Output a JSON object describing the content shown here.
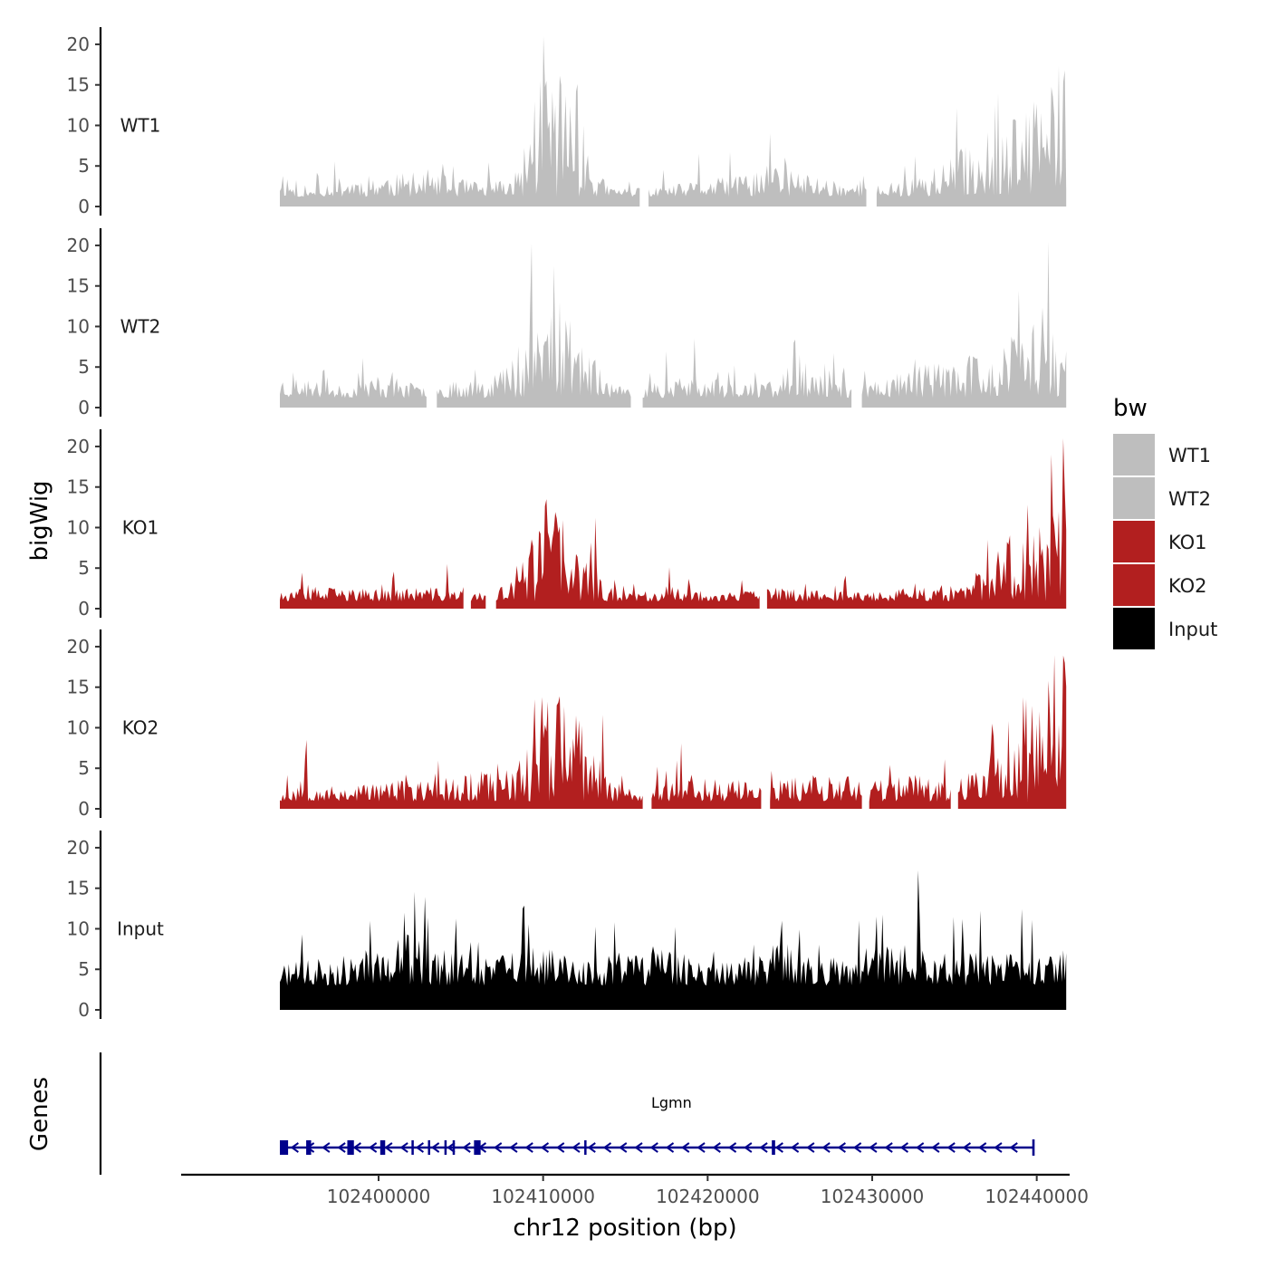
{
  "chart_data": {
    "type": "area",
    "title": "",
    "ylabel": "bigWig",
    "xlabel": "chr12 position (bp)",
    "gene_panel_label": "Genes",
    "xlim": [
      102388000,
      102442000
    ],
    "data_range": [
      102394000,
      102441800
    ],
    "ylim": [
      0,
      21
    ],
    "y_ticks": [
      "20",
      "15",
      "10",
      "5",
      "0"
    ],
    "x_ticks": [
      {
        "value": 102400000,
        "label": "102400000"
      },
      {
        "value": 102410000,
        "label": "102410000"
      },
      {
        "value": 102420000,
        "label": "102420000"
      },
      {
        "value": 102430000,
        "label": "102430000"
      },
      {
        "value": 102440000,
        "label": "102440000"
      }
    ],
    "colors": {
      "WT": "#bebebe",
      "KO": "#b21f1f",
      "Input": "#000000",
      "gene": "#00008b",
      "axis": "#000000"
    },
    "legend": {
      "title": "bw",
      "position": "right",
      "entries": [
        {
          "label": "WT1",
          "color": "#bebebe"
        },
        {
          "label": "WT2",
          "color": "#bebebe"
        },
        {
          "label": "KO1",
          "color": "#b21f1f"
        },
        {
          "label": "KO2",
          "color": "#b21f1f"
        },
        {
          "label": "Input",
          "color": "#000000"
        }
      ]
    },
    "series": [
      {
        "name": "WT1",
        "color": "#bebebe",
        "baseline": 1.2,
        "seed": 11,
        "gaps": [
          [
            102415900,
            102416400
          ],
          [
            102429700,
            102430200
          ]
        ],
        "profile": [
          [
            102394000,
            4.0
          ],
          [
            102395200,
            1.2
          ],
          [
            102397000,
            2.5
          ],
          [
            102400000,
            3.0
          ],
          [
            102404000,
            2.8
          ],
          [
            102406500,
            2.2
          ],
          [
            102408500,
            3.0
          ],
          [
            102409300,
            8.5
          ],
          [
            102410000,
            12.0
          ],
          [
            102410500,
            11.5
          ],
          [
            102411200,
            9.0
          ],
          [
            102412000,
            9.5
          ],
          [
            102412800,
            4.0
          ],
          [
            102414000,
            2.0
          ],
          [
            102416500,
            1.8
          ],
          [
            102420000,
            2.5
          ],
          [
            102422000,
            2.8
          ],
          [
            102424000,
            4.0
          ],
          [
            102426000,
            3.0
          ],
          [
            102428000,
            2.5
          ],
          [
            102430000,
            2.0
          ],
          [
            102432000,
            2.5
          ],
          [
            102434000,
            3.5
          ],
          [
            102436000,
            5.5
          ],
          [
            102438000,
            6.5
          ],
          [
            102440000,
            8.5
          ],
          [
            102441500,
            11.0
          ],
          [
            102441800,
            13.0
          ]
        ],
        "peaks": [
          [
            102410200,
            15.5
          ],
          [
            102411100,
            15.0
          ],
          [
            102423800,
            9.0
          ],
          [
            102441700,
            16.8
          ],
          [
            102437500,
            12.5
          ],
          [
            102440300,
            11.5
          ],
          [
            102419500,
            6.5
          ],
          [
            102404500,
            5.0
          ]
        ]
      },
      {
        "name": "WT2",
        "color": "#bebebe",
        "baseline": 1.2,
        "seed": 23,
        "gaps": [
          [
            102403000,
            102403500
          ],
          [
            102415400,
            102416000
          ],
          [
            102428800,
            102429300
          ]
        ],
        "profile": [
          [
            102394000,
            3.0
          ],
          [
            102398000,
            2.0
          ],
          [
            102400000,
            3.0
          ],
          [
            102403000,
            2.0
          ],
          [
            102406000,
            2.8
          ],
          [
            102408000,
            4.0
          ],
          [
            102409500,
            8.0
          ],
          [
            102410500,
            9.5
          ],
          [
            102411500,
            8.0
          ],
          [
            102412500,
            6.0
          ],
          [
            102413500,
            3.0
          ],
          [
            102415000,
            1.8
          ],
          [
            102417000,
            2.5
          ],
          [
            102419000,
            2.8
          ],
          [
            102421000,
            2.5
          ],
          [
            102423000,
            2.2
          ],
          [
            102425000,
            3.5
          ],
          [
            102427000,
            2.8
          ],
          [
            102429000,
            2.0
          ],
          [
            102431000,
            3.0
          ],
          [
            102433000,
            3.8
          ],
          [
            102435000,
            4.2
          ],
          [
            102437000,
            4.5
          ],
          [
            102439000,
            6.5
          ],
          [
            102440500,
            9.0
          ],
          [
            102441000,
            7.0
          ],
          [
            102441800,
            5.0
          ]
        ],
        "peaks": [
          [
            102409200,
            12.3
          ],
          [
            102411000,
            13.0
          ],
          [
            102419200,
            8.5
          ],
          [
            102440700,
            20.5
          ],
          [
            102438600,
            8.5
          ],
          [
            102432600,
            6.0
          ],
          [
            102425600,
            6.5
          ]
        ]
      },
      {
        "name": "KO1",
        "color": "#b21f1f",
        "baseline": 0.9,
        "seed": 37,
        "gaps": [
          [
            102405200,
            102405600
          ],
          [
            102406600,
            102407100
          ],
          [
            102423200,
            102423600
          ]
        ],
        "profile": [
          [
            102394000,
            1.5
          ],
          [
            102396000,
            2.0
          ],
          [
            102400000,
            1.8
          ],
          [
            102403000,
            2.0
          ],
          [
            102406000,
            1.5
          ],
          [
            102408000,
            2.2
          ],
          [
            102409000,
            5.5
          ],
          [
            102410000,
            8.0
          ],
          [
            102411000,
            8.5
          ],
          [
            102411800,
            4.0
          ],
          [
            102412800,
            6.5
          ],
          [
            102413500,
            2.5
          ],
          [
            102415000,
            1.5
          ],
          [
            102418000,
            2.0
          ],
          [
            102421000,
            1.5
          ],
          [
            102424000,
            2.0
          ],
          [
            102427000,
            1.8
          ],
          [
            102430000,
            1.6
          ],
          [
            102433000,
            2.0
          ],
          [
            102436000,
            2.2
          ],
          [
            102437500,
            6.5
          ],
          [
            102439000,
            5.5
          ],
          [
            102440500,
            9.0
          ],
          [
            102441300,
            17.0
          ],
          [
            102441800,
            18.5
          ]
        ],
        "peaks": [
          [
            102410200,
            13.5
          ],
          [
            102413200,
            11.2
          ],
          [
            102440900,
            19.0
          ],
          [
            102437000,
            8.5
          ],
          [
            102439800,
            9.0
          ],
          [
            102404200,
            5.5
          ]
        ]
      },
      {
        "name": "KO2",
        "color": "#b21f1f",
        "baseline": 0.9,
        "seed": 53,
        "gaps": [
          [
            102416100,
            102416500
          ],
          [
            102423300,
            102423700
          ],
          [
            102429400,
            102429800
          ],
          [
            102434800,
            102435200
          ]
        ],
        "profile": [
          [
            102394000,
            1.5
          ],
          [
            102395500,
            3.0
          ],
          [
            102397000,
            2.0
          ],
          [
            102400000,
            2.5
          ],
          [
            102403000,
            2.5
          ],
          [
            102405000,
            3.0
          ],
          [
            102407000,
            3.2
          ],
          [
            102408500,
            3.5
          ],
          [
            102409200,
            9.0
          ],
          [
            102410300,
            10.5
          ],
          [
            102411000,
            10.0
          ],
          [
            102412000,
            7.5
          ],
          [
            102413000,
            5.0
          ],
          [
            102414500,
            2.5
          ],
          [
            102416000,
            1.5
          ],
          [
            102418000,
            3.0
          ],
          [
            102420000,
            2.8
          ],
          [
            102422000,
            2.5
          ],
          [
            102424000,
            2.5
          ],
          [
            102426000,
            3.2
          ],
          [
            102428000,
            2.8
          ],
          [
            102430000,
            2.6
          ],
          [
            102432000,
            3.0
          ],
          [
            102434000,
            3.0
          ],
          [
            102436000,
            3.0
          ],
          [
            102437500,
            6.5
          ],
          [
            102439000,
            8.5
          ],
          [
            102440500,
            10.0
          ],
          [
            102441800,
            15.0
          ]
        ],
        "peaks": [
          [
            102409500,
            13.5
          ],
          [
            102410300,
            13.2
          ],
          [
            102441700,
            18.0
          ],
          [
            102440200,
            12.0
          ],
          [
            102395600,
            8.5
          ],
          [
            102437300,
            10.5
          ]
        ]
      },
      {
        "name": "Input",
        "color": "#000000",
        "baseline": 3.0,
        "seed": 71,
        "gaps": [],
        "profile": [
          [
            102394000,
            4.5
          ],
          [
            102396000,
            5.0
          ],
          [
            102398000,
            5.5
          ],
          [
            102400000,
            6.0
          ],
          [
            102402000,
            7.0
          ],
          [
            102403500,
            6.0
          ],
          [
            102405000,
            5.5
          ],
          [
            102407000,
            5.5
          ],
          [
            102409000,
            6.0
          ],
          [
            102411000,
            5.5
          ],
          [
            102413000,
            5.0
          ],
          [
            102415000,
            5.5
          ],
          [
            102417000,
            6.0
          ],
          [
            102419000,
            5.5
          ],
          [
            102421000,
            5.5
          ],
          [
            102423000,
            5.0
          ],
          [
            102424500,
            6.5
          ],
          [
            102426000,
            5.5
          ],
          [
            102428000,
            5.0
          ],
          [
            102430000,
            6.5
          ],
          [
            102432000,
            6.0
          ],
          [
            102434000,
            5.5
          ],
          [
            102436000,
            5.5
          ],
          [
            102438000,
            5.5
          ],
          [
            102440000,
            5.0
          ],
          [
            102441800,
            6.0
          ]
        ],
        "peaks": [
          [
            102401600,
            12.0
          ],
          [
            102408800,
            12.5
          ],
          [
            102432800,
            17.2
          ],
          [
            102430300,
            11.5
          ],
          [
            102424500,
            11.0
          ],
          [
            102435500,
            11.2
          ]
        ]
      }
    ],
    "gene": {
      "name": "Lgmn",
      "strand": "-",
      "start": 102394000,
      "end": 102439800,
      "exons": [
        [
          102394000,
          102394500
        ],
        [
          102395600,
          102395900
        ],
        [
          102398100,
          102398500
        ],
        [
          102400100,
          102400400
        ],
        [
          102402000,
          102402100
        ],
        [
          102403000,
          102403100
        ],
        [
          102404000,
          102404100
        ],
        [
          102404500,
          102404600
        ],
        [
          102405800,
          102406200
        ],
        [
          102412500,
          102412600
        ],
        [
          102423900,
          102424100
        ]
      ]
    }
  }
}
